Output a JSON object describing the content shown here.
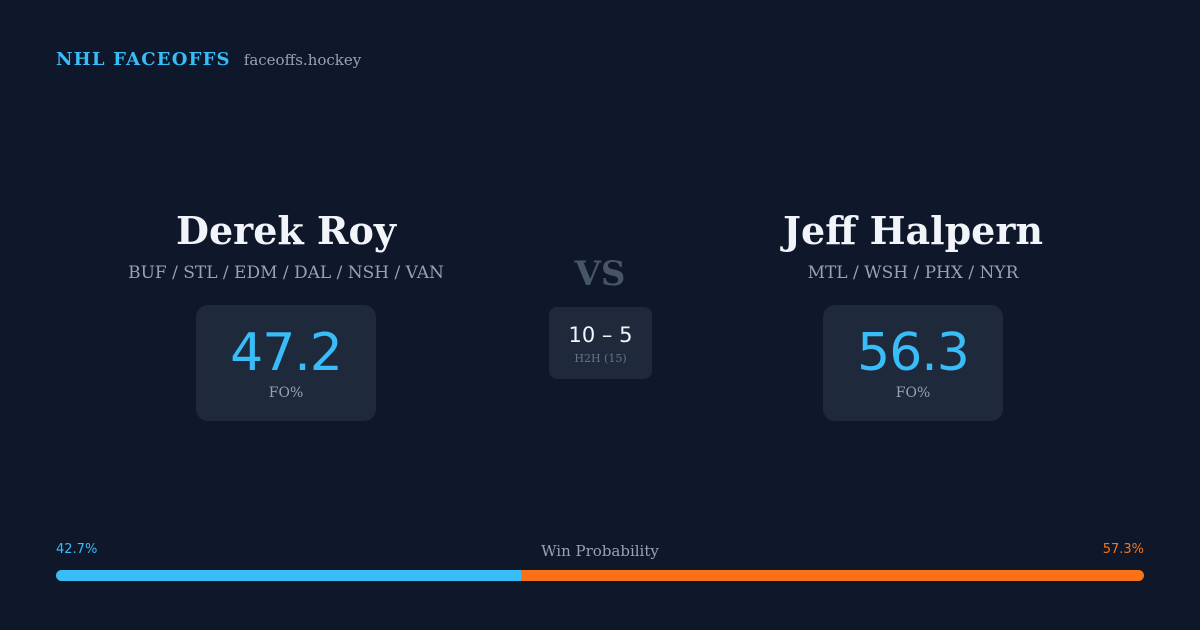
{
  "header": {
    "brand": "NHL FACEOFFS",
    "domain": "faceoffs.hockey"
  },
  "player_left": {
    "name": "Derek Roy",
    "teams": "BUF / STL / EDM / DAL / NSH / VAN",
    "fo_value": "47.2",
    "fo_label": "FO%"
  },
  "player_right": {
    "name": "Jeff Halpern",
    "teams": "MTL / WSH / PHX / NYR",
    "fo_value": "56.3",
    "fo_label": "FO%"
  },
  "matchup": {
    "vs_label": "VS",
    "h2h_score": "10 – 5",
    "h2h_label": "H2H (15)"
  },
  "win_probability": {
    "title": "Win Probability",
    "left_label": "42.7%",
    "right_label": "57.3%",
    "left_fraction": 0.427,
    "right_fraction": 0.573
  },
  "colors": {
    "background": "#0f172a",
    "card": "#1e293b",
    "accent_left": "#38bdf8",
    "accent_right": "#f97316",
    "muted": "#94a3b8"
  }
}
